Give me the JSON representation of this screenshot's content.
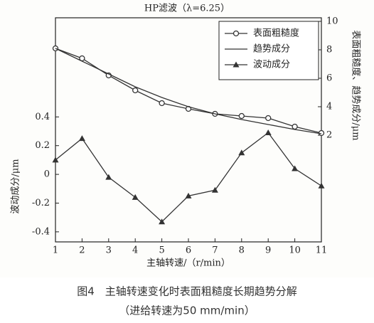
{
  "chart_data": {
    "type": "line",
    "title": "HP滤波（λ=6.25）",
    "x_label": "主轴转速/（r/min）",
    "y_label": "波动成分/μm",
    "y2_label": "表面粗糙度、趋势成分/μm",
    "x": [
      1,
      2,
      3,
      4,
      5,
      6,
      7,
      8,
      9,
      10,
      11
    ],
    "xlim": [
      1,
      11
    ],
    "xticks": [
      1,
      2,
      3,
      4,
      5,
      6,
      7,
      8,
      9,
      10,
      11
    ],
    "ylim": [
      -0.47,
      1.09
    ],
    "yticks": [
      -0.4,
      -0.2,
      0,
      0.2,
      0.4
    ],
    "y2lim": [
      -5.5,
      10.25
    ],
    "y2ticks": [
      2,
      4,
      6,
      8,
      10
    ],
    "legend": "upper right",
    "series": [
      {
        "name": "表面粗糙度",
        "color": "#333333",
        "marker": "circle",
        "axis": "y2",
        "values": [
          8.1,
          7.4,
          6.2,
          5.15,
          4.25,
          3.85,
          3.5,
          3.35,
          3.2,
          2.6,
          2.15
        ]
      },
      {
        "name": "趋势成分",
        "color": "#333333",
        "marker": "none",
        "axis": "y2",
        "values": [
          8.1,
          7.2,
          6.3,
          5.4,
          4.65,
          4.0,
          3.5,
          3.1,
          2.75,
          2.4,
          2.1
        ]
      },
      {
        "name": "波动成分",
        "color": "#333333",
        "marker": "triangle",
        "values": [
          0.1,
          0.25,
          -0.02,
          -0.16,
          -0.33,
          -0.15,
          -0.11,
          0.15,
          0.29,
          0.04,
          -0.08
        ]
      }
    ]
  },
  "caption": [
    "图4　主轴转速变化时表面粗糙度长期趋势分解",
    "（进给转速为50 mm/min）"
  ]
}
